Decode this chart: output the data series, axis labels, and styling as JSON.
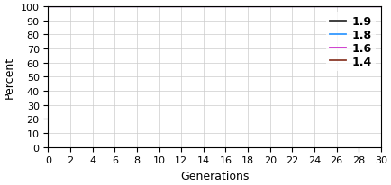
{
  "title": "",
  "xlabel": "Generations",
  "ylabel": "Percent",
  "xlim": [
    0,
    30
  ],
  "ylim": [
    0,
    100
  ],
  "xticks": [
    0,
    2,
    4,
    6,
    8,
    10,
    12,
    14,
    16,
    18,
    20,
    22,
    24,
    26,
    28,
    30
  ],
  "yticks": [
    0,
    10,
    20,
    30,
    40,
    50,
    60,
    70,
    80,
    90,
    100
  ],
  "series": [
    {
      "label": "1.9",
      "r": 1.9,
      "color": "#303030",
      "linewidth": 1.3
    },
    {
      "label": "1.8",
      "r": 1.8,
      "color": "#3399ff",
      "linewidth": 1.3
    },
    {
      "label": "1.6",
      "r": 1.6,
      "color": "#cc33cc",
      "linewidth": 1.3
    },
    {
      "label": "1.4",
      "r": 1.4,
      "color": "#8B3A2A",
      "linewidth": 1.3
    }
  ],
  "grid": true,
  "grid_color": "#cccccc",
  "background_color": "#ffffff",
  "legend_fontsize": 9,
  "axis_fontsize": 9,
  "tick_fontsize": 8
}
